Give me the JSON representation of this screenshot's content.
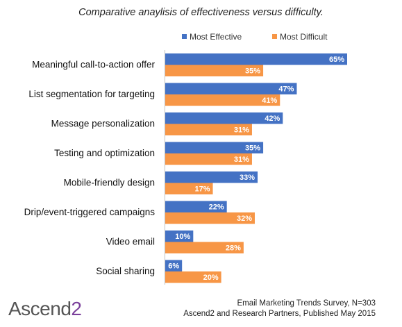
{
  "chart_data": {
    "type": "bar",
    "orientation": "horizontal",
    "title": "Comparative anaylisis of effectiveness versus difficulty.",
    "categories": [
      "Meaningful call-to-action offer",
      "List segmentation for targeting",
      "Message personalization",
      "Testing and optimization",
      "Mobile-friendly design",
      "Drip/event-triggered campaigns",
      "Video email",
      "Social sharing"
    ],
    "series": [
      {
        "name": "Most Effective",
        "color": "#4472c4",
        "values": [
          65,
          47,
          42,
          35,
          33,
          22,
          10,
          6
        ]
      },
      {
        "name": "Most Difficult",
        "color": "#f79646",
        "values": [
          35,
          41,
          31,
          31,
          17,
          32,
          28,
          20
        ]
      }
    ],
    "value_suffix": "%",
    "xlim": [
      0,
      65
    ],
    "grid": false,
    "legend": "top"
  },
  "footer": {
    "logo_main": "Ascend",
    "logo_num": "2",
    "source_line1": "Email Marketing Trends Survey, N=303",
    "source_line2": "Ascend2 and Research Partners, Published May 2015"
  }
}
